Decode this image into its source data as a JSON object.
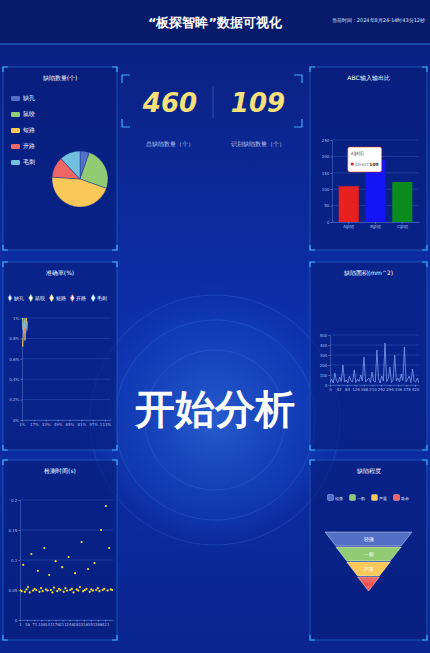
{
  "header": {
    "title": "“板探智眸”数据可视化",
    "time": "当前时间：2024年8月24-14时43分12秒"
  },
  "kpis": [
    {
      "value": 460,
      "label": "总缺陷数量（个）"
    },
    {
      "value": 109,
      "label": "识别缺陷数量（个）"
    }
  ],
  "center_text": "开始分析",
  "chart_data": [
    {
      "type": "pie",
      "title": "缺陷数量(个)",
      "categories": [
        "缺孔",
        "鼠咬",
        "短路",
        "开路",
        "毛刺"
      ],
      "values": [
        25,
        115,
        210,
        55,
        55
      ],
      "colors": [
        "#5470c6",
        "#91cc75",
        "#fac858",
        "#ee6666",
        "#73c0de"
      ],
      "legend": "top-left"
    },
    {
      "type": "line",
      "title": "准确率(%)",
      "x": [
        1,
        2,
        3,
        4,
        5,
        6,
        7,
        8
      ],
      "series": [
        {
          "name": "缺孔",
          "color": "#5470c6",
          "values": [
            1,
            0.95,
            0.9,
            0.85,
            0.92,
            0.96,
            0.9,
            0.94
          ]
        },
        {
          "name": "鼠咬",
          "color": "#91cc75",
          "values": [
            0.9,
            1,
            0.88,
            0.95,
            1,
            0.9,
            0.97,
            0.93
          ]
        },
        {
          "name": "短路",
          "color": "#fac858",
          "values": [
            0.8,
            0.72,
            0.86,
            0.98,
            0.78,
            0.92,
            1,
            0.88
          ]
        },
        {
          "name": "开路",
          "color": "#ee6666",
          "values": [
            0.95,
            0.9,
            1,
            0.93,
            0.87,
            0.98,
            0.91,
            0.96
          ]
        },
        {
          "name": "毛刺",
          "color": "#73c0de",
          "values": [
            0.88,
            0.96,
            0.93,
            0.9,
            0.99,
            0.86,
            0.94,
            0.97
          ]
        }
      ],
      "xlim": [
        1,
        121
      ],
      "xticks": [
        {
          "value": 1,
          "label": "1%"
        },
        {
          "value": 17,
          "label": "17%"
        },
        {
          "value": 33,
          "label": "33%"
        },
        {
          "value": 49,
          "label": "49%"
        },
        {
          "value": 65,
          "label": "65%"
        },
        {
          "value": 81,
          "label": "81%"
        },
        {
          "value": 97,
          "label": "97%"
        },
        {
          "value": 113,
          "label": "113%"
        }
      ],
      "ylim": [
        0,
        1
      ],
      "yticks": [
        {
          "value": 0,
          "label": "0%"
        },
        {
          "value": 0.2,
          "label": "0.2%"
        },
        {
          "value": 0.4,
          "label": "0.4%"
        },
        {
          "value": 0.6,
          "label": "0.6%"
        },
        {
          "value": 0.8,
          "label": "0.8%"
        },
        {
          "value": 1,
          "label": "1%"
        }
      ],
      "grid": true,
      "legend": "top",
      "marker": "diamond"
    },
    {
      "type": "scatter",
      "title": "检测时间(s)",
      "x": [
        1,
        9,
        17,
        25,
        33,
        41,
        49,
        57,
        65,
        73,
        81,
        89,
        97,
        105,
        113,
        121,
        129,
        137,
        145,
        153,
        161,
        169,
        177,
        185,
        193,
        201,
        209,
        217,
        225,
        233,
        241,
        249,
        257,
        265,
        273,
        281,
        289,
        297,
        305,
        313,
        321,
        329,
        337,
        345,
        353,
        361,
        369,
        377,
        385,
        393,
        401,
        409,
        417,
        425,
        433,
        441,
        449,
        457
      ],
      "values": [
        0.05,
        0.048,
        0.092,
        0.047,
        0.051,
        0.055,
        0.046,
        0.11,
        0.049,
        0.052,
        0.05,
        0.082,
        0.047,
        0.053,
        0.048,
        0.12,
        0.051,
        0.049,
        0.075,
        0.05,
        0.046,
        0.054,
        0.098,
        0.048,
        0.052,
        0.05,
        0.088,
        0.047,
        0.053,
        0.049,
        0.105,
        0.05,
        0.052,
        0.046,
        0.078,
        0.051,
        0.049,
        0.055,
        0.13,
        0.048,
        0.05,
        0.052,
        0.085,
        0.047,
        0.051,
        0.049,
        0.095,
        0.05,
        0.053,
        0.048,
        0.15,
        0.05,
        0.052,
        0.19,
        0.049,
        0.12,
        0.051,
        0.05
      ],
      "color": "#f5e125",
      "marker": "circle",
      "xlim": [
        1,
        460
      ],
      "xticks": [
        1,
        36,
        71,
        106,
        141,
        176,
        211,
        246,
        281,
        316,
        351,
        386,
        421
      ],
      "ylim": [
        0,
        0.2
      ],
      "yticks": [
        0,
        0.05,
        0.1,
        0.15,
        0.2
      ],
      "grid": true
    },
    {
      "type": "bar",
      "title": "ABC输入输出比",
      "categories": [
        "A缺陷",
        "B缺陷",
        "C缺陷"
      ],
      "series": [
        {
          "name": "Direct",
          "values": [
            109,
            190,
            122
          ]
        }
      ],
      "colors": [
        "#e8201f",
        "#1414f5",
        "#0b8a1e"
      ],
      "ylim": [
        0,
        250
      ],
      "yticks": [
        0,
        50,
        100,
        150,
        200,
        250
      ],
      "grid": true
    },
    {
      "type": "line",
      "title": "缺陷面积(mm^2)",
      "x": [
        0,
        8,
        16,
        24,
        32,
        40,
        48,
        56,
        64,
        72,
        80,
        88,
        96,
        104,
        112,
        120,
        128,
        136,
        144,
        152,
        160,
        168,
        176,
        184,
        192,
        200,
        208,
        216,
        224,
        232,
        240,
        248,
        256,
        264,
        272,
        280,
        288,
        296,
        304,
        312,
        320,
        328,
        336,
        344,
        352,
        360,
        368,
        376,
        384,
        392,
        400,
        408,
        416,
        424,
        432,
        440
      ],
      "values": [
        30,
        60,
        20,
        120,
        40,
        25,
        80,
        35,
        200,
        30,
        50,
        20,
        90,
        40,
        30,
        150,
        25,
        60,
        35,
        100,
        40,
        280,
        30,
        50,
        70,
        25,
        130,
        40,
        30,
        350,
        60,
        20,
        90,
        40,
        420,
        35,
        60,
        180,
        25,
        50,
        300,
        40,
        70,
        30,
        110,
        45,
        380,
        30,
        60,
        90,
        25,
        160,
        40,
        30,
        70,
        20
      ],
      "color": "#7b9cf0",
      "xlim": [
        0,
        440
      ],
      "xticks": [
        0,
        42,
        84,
        126,
        168,
        210,
        252,
        294,
        336,
        378,
        420
      ],
      "ylim": [
        0,
        500
      ],
      "yticks": [
        0,
        100,
        200,
        300,
        400,
        500
      ],
      "grid": true
    },
    {
      "type": "funnel",
      "title": "缺陷程度",
      "categories": [
        "轻微",
        "一般",
        "严重",
        "致命"
      ],
      "values": [
        100,
        75,
        50,
        25
      ],
      "colors": [
        "#5470c6",
        "#91cc75",
        "#fac858",
        "#ee6666"
      ],
      "legend": "top"
    }
  ]
}
